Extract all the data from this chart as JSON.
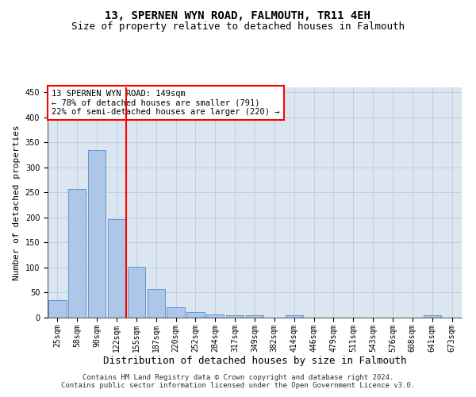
{
  "title": "13, SPERNEN WYN ROAD, FALMOUTH, TR11 4EH",
  "subtitle": "Size of property relative to detached houses in Falmouth",
  "xlabel": "Distribution of detached houses by size in Falmouth",
  "ylabel": "Number of detached properties",
  "bar_labels": [
    "25sqm",
    "58sqm",
    "90sqm",
    "122sqm",
    "155sqm",
    "187sqm",
    "220sqm",
    "252sqm",
    "284sqm",
    "317sqm",
    "349sqm",
    "382sqm",
    "414sqm",
    "446sqm",
    "479sqm",
    "511sqm",
    "543sqm",
    "576sqm",
    "608sqm",
    "641sqm",
    "673sqm"
  ],
  "bar_values": [
    35,
    257,
    335,
    197,
    102,
    57,
    20,
    11,
    6,
    5,
    4,
    0,
    4,
    0,
    0,
    0,
    0,
    0,
    0,
    4,
    0
  ],
  "bar_color": "#aec6e8",
  "bar_edge_color": "#5b9bd5",
  "grid_color": "#c0cfe0",
  "background_color": "#dce6f0",
  "vline_x_idx": 3.5,
  "vline_color": "red",
  "annotation_text": "13 SPERNEN WYN ROAD: 149sqm\n← 78% of detached houses are smaller (791)\n22% of semi-detached houses are larger (220) →",
  "annotation_box_color": "white",
  "annotation_box_edge_color": "red",
  "ylim": [
    0,
    460
  ],
  "yticks": [
    0,
    50,
    100,
    150,
    200,
    250,
    300,
    350,
    400,
    450
  ],
  "footer_text": "Contains HM Land Registry data © Crown copyright and database right 2024.\nContains public sector information licensed under the Open Government Licence v3.0.",
  "title_fontsize": 10,
  "subtitle_fontsize": 9,
  "xlabel_fontsize": 9,
  "ylabel_fontsize": 8,
  "tick_fontsize": 7,
  "annotation_fontsize": 7.5,
  "footer_fontsize": 6.5
}
